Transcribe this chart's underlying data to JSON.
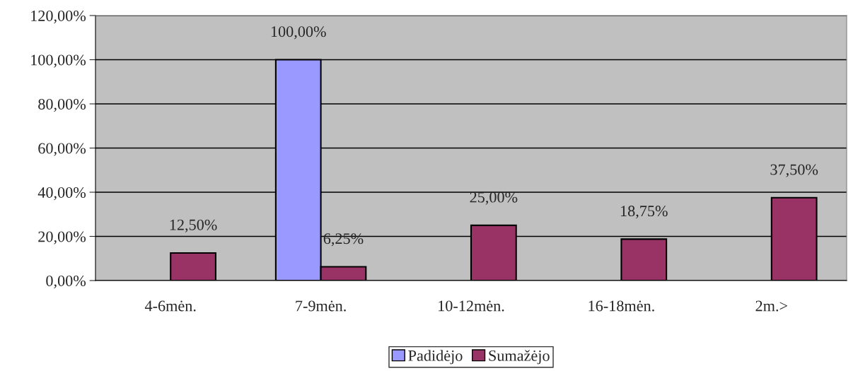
{
  "chart_data": {
    "type": "bar",
    "categories": [
      "4-6mėn.",
      "7-9mėn.",
      "10-12mėn.",
      "16-18mėn.",
      "2m.>"
    ],
    "series": [
      {
        "name": "Padidėjo",
        "color": "#9999ff",
        "values": [
          null,
          100,
          null,
          null,
          null
        ],
        "value_labels": [
          null,
          "100,00%",
          null,
          null,
          null
        ]
      },
      {
        "name": "Sumažėjo",
        "color": "#993366",
        "values": [
          12.5,
          6.25,
          25,
          18.75,
          37.5
        ],
        "value_labels": [
          "12,50%",
          "6,25%",
          "25,00%",
          "18,75%",
          "37,50%"
        ]
      }
    ],
    "ylim": [
      0,
      120
    ],
    "yticks": [
      {
        "value": 0,
        "label": "0,00%"
      },
      {
        "value": 20,
        "label": "20,00%"
      },
      {
        "value": 40,
        "label": "40,00%"
      },
      {
        "value": 60,
        "label": "60,00%"
      },
      {
        "value": 80,
        "label": "80,00%"
      },
      {
        "value": 100,
        "label": "100,00%"
      },
      {
        "value": 120,
        "label": "120,00%"
      }
    ],
    "grid": "y",
    "legend": "bottom"
  }
}
